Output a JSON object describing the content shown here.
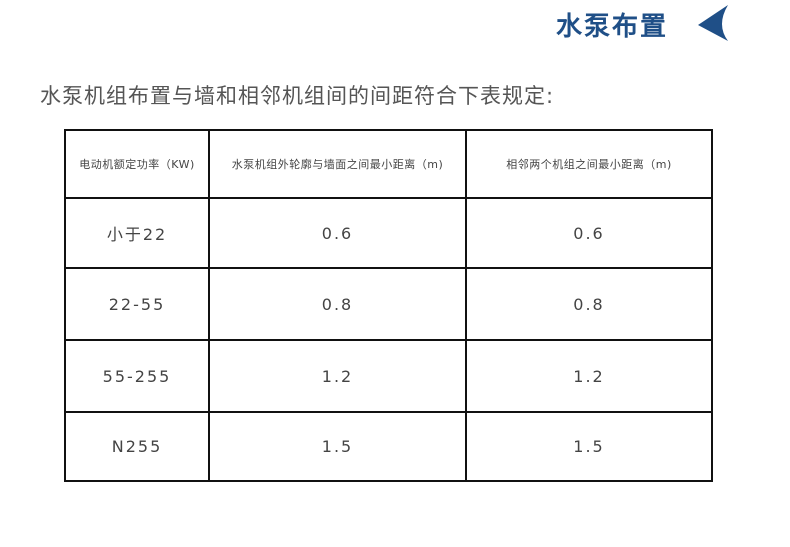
{
  "header": {
    "title": "水泵布置",
    "arrow_icon": "left-arrow-icon",
    "accent": "#1f4f87"
  },
  "intro": "水泵机组布置与墙和相邻机组间的间距符合下表规定:",
  "table": {
    "headers": [
      "电动机额定功率（KW)",
      "水泵机组外轮廓与墙面之间最小距离（m)",
      "相邻两个机组之间最小距离（m)"
    ],
    "rows": [
      [
        "小于22",
        "0.6",
        "0.6"
      ],
      [
        "22-55",
        "0.8",
        "0.8"
      ],
      [
        "55-255",
        "1.2",
        "1.2"
      ],
      [
        "N255",
        "1.5",
        "1.5"
      ]
    ]
  }
}
